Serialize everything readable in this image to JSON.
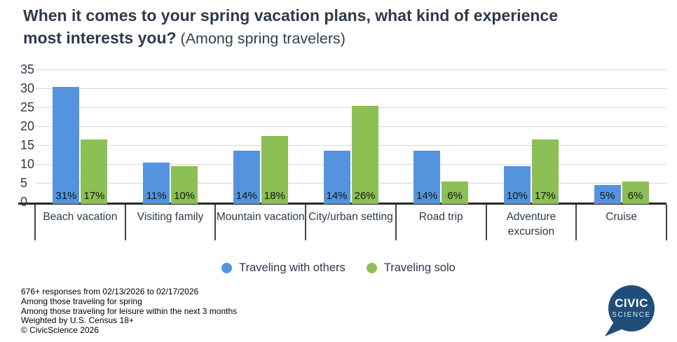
{
  "title": {
    "line1": "When it comes to your spring vacation plans, what kind of experience",
    "line2_bold": "most interests you?",
    "subtitle": "(Among spring travelers)"
  },
  "chart_data": {
    "type": "bar",
    "title": "When it comes to your spring vacation plans, what kind of experience most interests you? (Among spring travelers)",
    "categories": [
      "Beach vacation",
      "Visiting family",
      "Mountain vacation",
      "City/urban setting",
      "Road trip",
      "Adventure excursion",
      "Cruise"
    ],
    "series": [
      {
        "name": "Traveling with others",
        "color": "#5494df",
        "values": [
          31,
          11,
          14,
          14,
          14,
          10,
          5
        ]
      },
      {
        "name": "Traveling solo",
        "color": "#8cbf54",
        "values": [
          17,
          10,
          18,
          26,
          6,
          17,
          6
        ]
      }
    ],
    "value_suffix": "%",
    "xlabel": "",
    "ylabel": "",
    "ylim": [
      0,
      35
    ],
    "yticks": [
      0,
      5,
      10,
      15,
      20,
      25,
      30,
      35
    ],
    "grid": true,
    "legend_position": "bottom"
  },
  "footer": {
    "lines": [
      "676+ responses from 02/13/2026 to 02/17/2026",
      "Among those traveling for spring",
      "Among those traveling for leisure within the next 3 months",
      "Weighted by U.S. Census 18+",
      "© CivicScience 2026"
    ]
  },
  "logo": {
    "text_top": "CIVIC",
    "text_bottom": "SCIENCE",
    "color": "#1f4e79"
  },
  "colors": {
    "title": "#2e3a4c",
    "gridline": "#d9d9d9",
    "axis": "#262626",
    "bar_label": "#141414"
  }
}
